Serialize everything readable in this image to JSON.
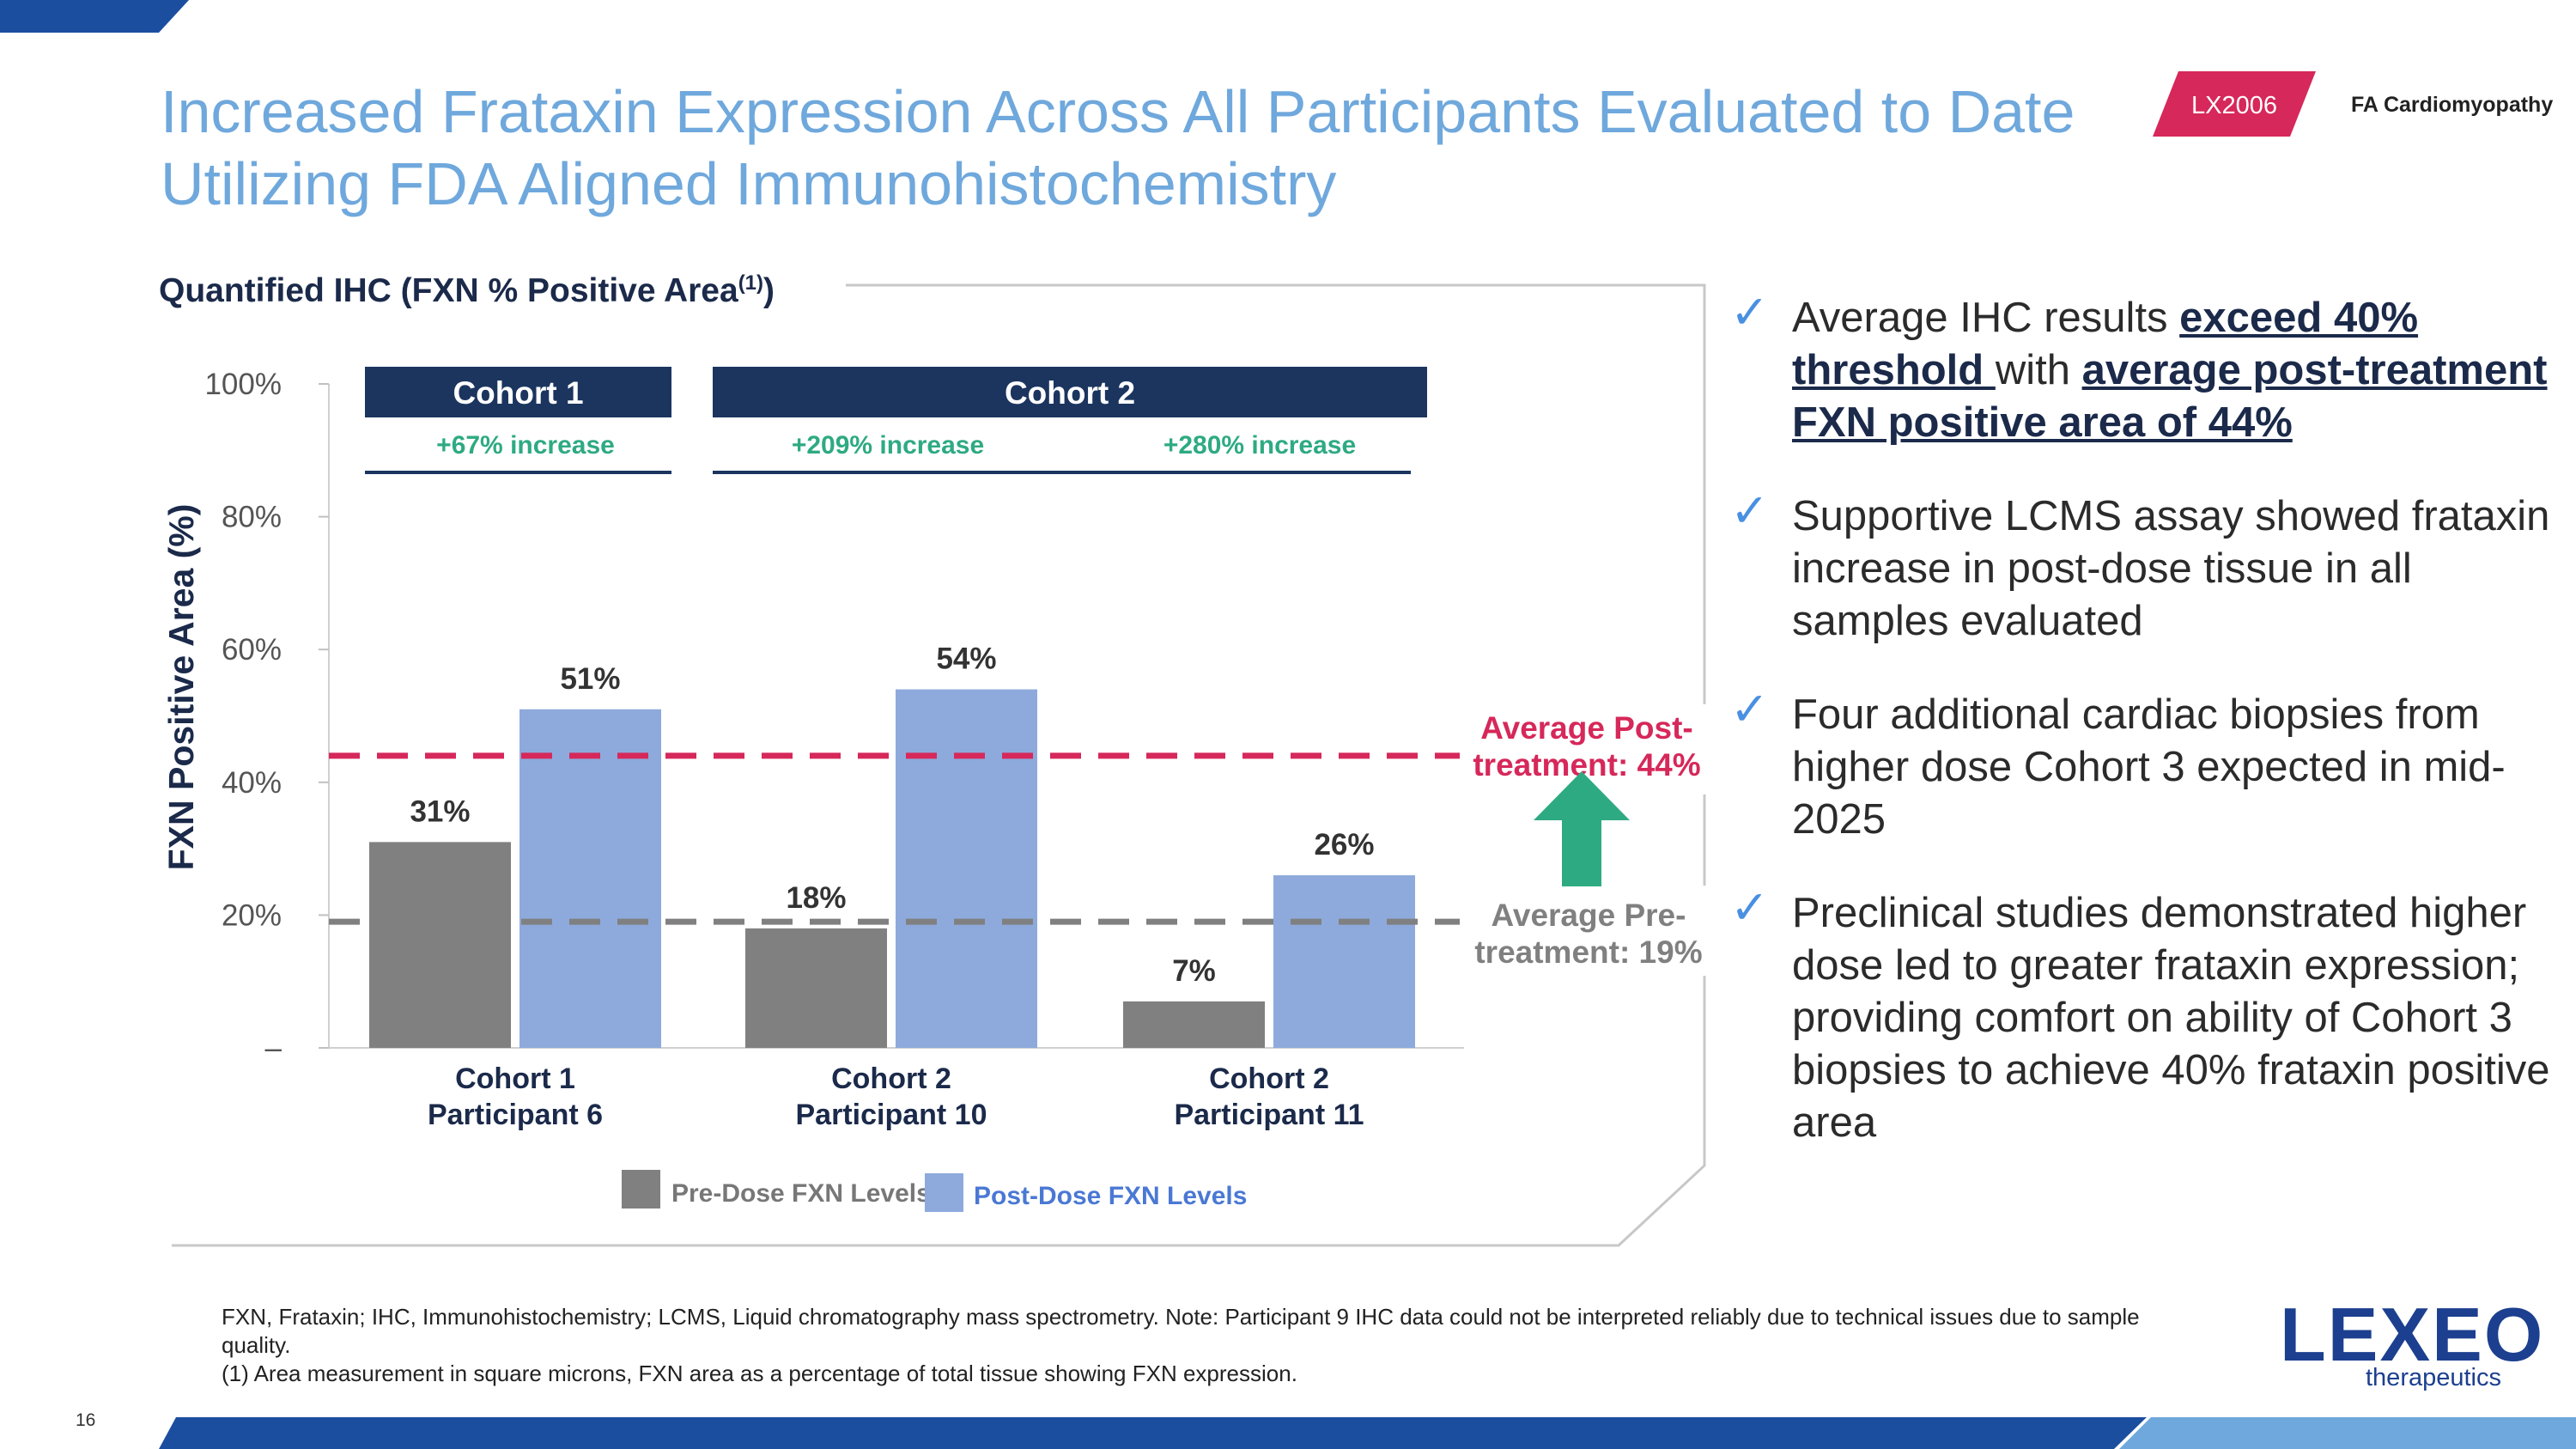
{
  "header": {
    "title_line1": "Increased Frataxin Expression Across All Participants Evaluated to Date",
    "title_line2": "Utilizing FDA Aligned Immunohistochemistry",
    "product_tag": "LX2006",
    "area_tag": "FA Cardiomyopathy"
  },
  "chart_subtitle": "Quantified IHC (FXN % Positive Area",
  "chart_subtitle_sup": "(1)",
  "chart_subtitle_close": ")",
  "chart_data": {
    "type": "bar",
    "ylabel": "FXN Positive Area (%)",
    "ylim": [
      0,
      100
    ],
    "yticks": [
      0,
      20,
      40,
      60,
      80,
      100
    ],
    "ytick_labels": [
      "–",
      "20%",
      "40%",
      "60%",
      "80%",
      "100%"
    ],
    "categories": [
      [
        "Cohort 1",
        "Participant 6"
      ],
      [
        "Cohort 2",
        "Participant 10"
      ],
      [
        "Cohort 2",
        "Participant 11"
      ]
    ],
    "series": [
      {
        "name": "Pre-Dose FXN Levels",
        "color": "#808080",
        "values": [
          31,
          18,
          7
        ],
        "labels": [
          "31%",
          "18%",
          "7%"
        ]
      },
      {
        "name": "Post-Dose FXN Levels",
        "color": "#8eaadc",
        "values": [
          51,
          54,
          26
        ],
        "labels": [
          "51%",
          "54%",
          "26%"
        ]
      }
    ],
    "reference_lines": [
      {
        "value": 44,
        "label_line1": "Average Post-",
        "label_line2": "treatment: 44%",
        "color": "#d6285a"
      },
      {
        "value": 19,
        "label_line1": "Average Pre-",
        "label_line2": "treatment: 19%",
        "color": "#808080"
      }
    ],
    "cohort_headers": [
      {
        "label": "Cohort 1",
        "increases": [
          "+67% increase"
        ]
      },
      {
        "label": "Cohort 2",
        "increases": [
          "+209% increase",
          "+280% increase"
        ]
      }
    ],
    "colors": {
      "increase_text": "#2eaa82",
      "header_bg": "#1b355f",
      "arrow": "#2eaa82"
    }
  },
  "bullets": [
    {
      "parts": [
        {
          "text": "Average IHC results ",
          "u": false
        },
        {
          "text": "exceed 40% threshold ",
          "u": true
        },
        {
          "text": "with ",
          "u": false
        },
        {
          "text": "average post-treatment FXN positive area of 44%",
          "u": true
        }
      ]
    },
    {
      "parts": [
        {
          "text": "Supportive LCMS assay showed frataxin increase in post-dose tissue in all samples evaluated",
          "u": false
        }
      ]
    },
    {
      "parts": [
        {
          "text": "Four additional cardiac biopsies from higher dose Cohort 3 expected in mid-2025",
          "u": false
        }
      ]
    },
    {
      "parts": [
        {
          "text": "Preclinical studies demonstrated higher dose led to greater frataxin expression; providing comfort on ability of Cohort 3 biopsies to achieve 40% frataxin positive area",
          "u": false
        }
      ]
    }
  ],
  "footnote": {
    "line1": "FXN, Frataxin; IHC, Immunohistochemistry; LCMS, Liquid chromatography mass spectrometry. Note: Participant 9 IHC data could not be interpreted reliably due to technical issues due to sample quality.",
    "line2": "(1)   Area measurement in square microns, FXN area as a percentage of total tissue showing FXN expression."
  },
  "page_number": "16",
  "logo": {
    "main": "LEXEO",
    "sub": "therapeutics"
  },
  "theme": {
    "accent_blue": "#6fa8dc",
    "navy": "#1b355f",
    "pink": "#d6285a",
    "footer_blue": "#1c4ea0"
  }
}
